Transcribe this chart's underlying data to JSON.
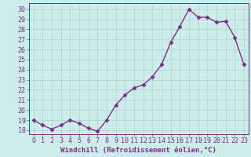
{
  "x": [
    0,
    1,
    2,
    3,
    4,
    5,
    6,
    7,
    8,
    9,
    10,
    11,
    12,
    13,
    14,
    15,
    16,
    17,
    18,
    19,
    20,
    21,
    22,
    23
  ],
  "y": [
    19.0,
    18.5,
    18.1,
    18.5,
    19.0,
    18.7,
    18.2,
    17.9,
    19.0,
    20.5,
    21.5,
    22.2,
    22.5,
    23.3,
    24.5,
    26.7,
    28.3,
    30.0,
    29.2,
    29.2,
    28.7,
    28.8,
    27.2,
    24.5
  ],
  "line_color": "#7b2d8b",
  "marker": "D",
  "marker_size": 2.5,
  "bg_color": "#ceecea",
  "grid_color": "#a8d5d0",
  "xlabel": "Windchill (Refroidissement éolien,°C)",
  "xlabel_fontsize": 6.5,
  "ylabel_ticks": [
    18,
    19,
    20,
    21,
    22,
    23,
    24,
    25,
    26,
    27,
    28,
    29,
    30
  ],
  "ylim": [
    17.6,
    30.6
  ],
  "xlim": [
    -0.5,
    23.5
  ],
  "tick_fontsize": 6.0,
  "linewidth": 1.0
}
